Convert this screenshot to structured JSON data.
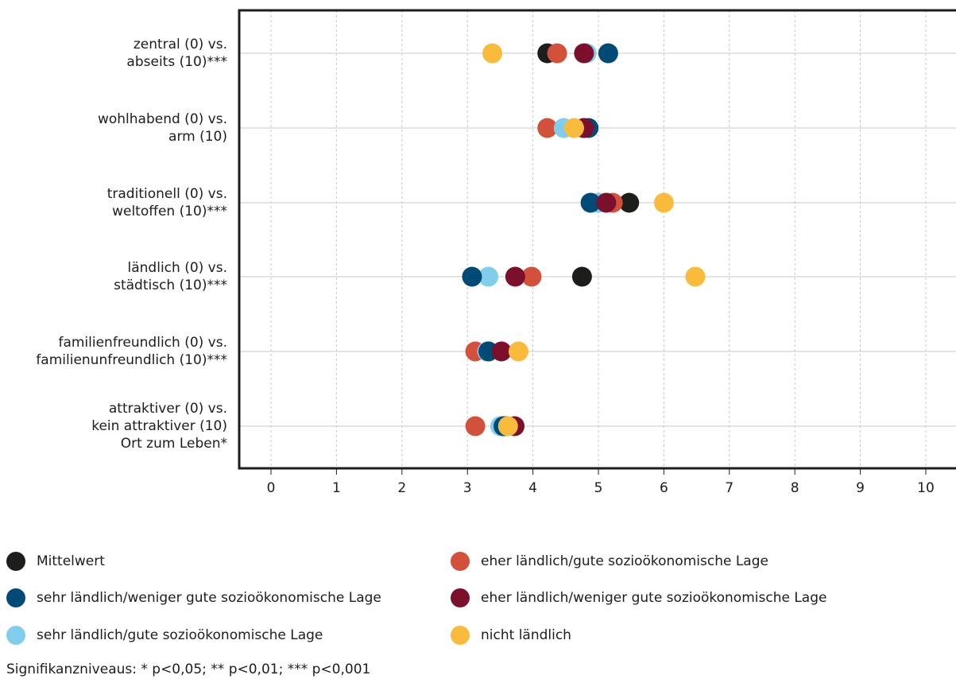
{
  "chart_data": {
    "type": "scatter",
    "categories": [
      [
        "zentral (0) vs.",
        "abseits (10)***"
      ],
      [
        "wohlhabend (0) vs.",
        "arm (10)"
      ],
      [
        "traditionell (0) vs.",
        "weltoffen (10)***"
      ],
      [
        "ländlich (0) vs.",
        "städtisch (10)***"
      ],
      [
        "familienfreundlich (0) vs.",
        "familienunfreundlich (10)***"
      ],
      [
        "attraktiver (0) vs.",
        "kein attraktiver (10)",
        "Ort zum Leben*"
      ]
    ],
    "xlim": [
      0,
      10
    ],
    "x_ticks": [
      "0",
      "1",
      "2",
      "3",
      "4",
      "5",
      "6",
      "7",
      "8",
      "9",
      "10"
    ],
    "grid": true,
    "legend_position": "bottom",
    "series": [
      {
        "name": "Mittelwert",
        "color": "#1d1d1b",
        "values": [
          4.22,
          4.78,
          5.47,
          4.75,
          3.32,
          3.58
        ]
      },
      {
        "name": "sehr ländlich/weniger gute sozioökonomische Lage",
        "color": "#004b76",
        "values": [
          5.15,
          4.85,
          4.88,
          3.07,
          3.32,
          3.55
        ]
      },
      {
        "name": "sehr ländlich/gute sozioökonomische Lage",
        "color": "#80cdec",
        "values": [
          4.82,
          4.47,
          5.0,
          3.32,
          3.3,
          3.5
        ]
      },
      {
        "name": "eher ländlich/gute sozioökonomische Lage",
        "color": "#d1513a",
        "values": [
          4.37,
          4.22,
          5.22,
          3.98,
          3.12,
          3.12
        ]
      },
      {
        "name": "eher ländlich/weniger gute sozioökonomische Lage",
        "color": "#7c0f2c",
        "values": [
          4.78,
          4.78,
          5.12,
          3.73,
          3.52,
          3.72
        ]
      },
      {
        "name": "nicht ländlich",
        "color": "#f9bb3c",
        "values": [
          3.38,
          4.63,
          6.0,
          6.48,
          3.78,
          3.62
        ]
      }
    ],
    "draw_order": [
      0,
      3,
      2,
      1,
      4,
      5
    ]
  },
  "legend_columns": [
    [
      0,
      1,
      2
    ],
    [
      3,
      4,
      5
    ]
  ],
  "footnote": "Signifikanzniveaus: * p<0,05; ** p<0,01; *** p<0,001"
}
